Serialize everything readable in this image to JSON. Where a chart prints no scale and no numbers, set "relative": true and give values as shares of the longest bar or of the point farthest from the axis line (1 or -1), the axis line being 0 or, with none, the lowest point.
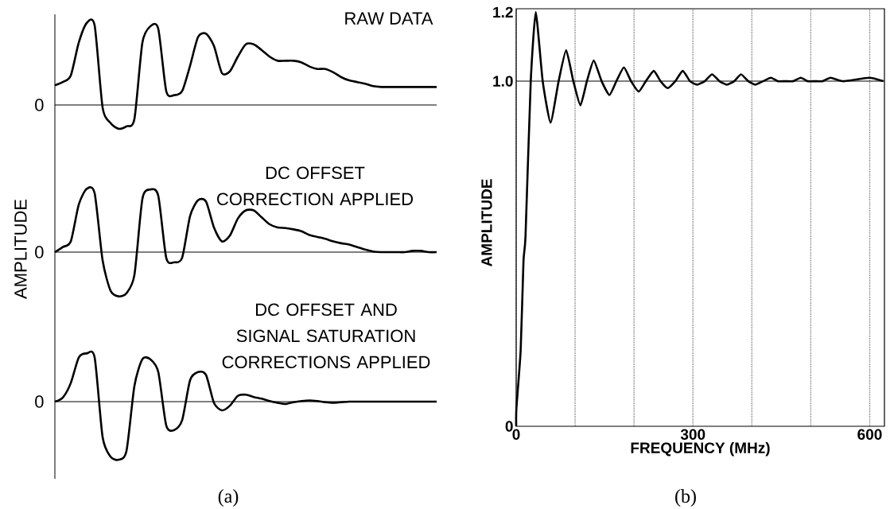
{
  "chart_data": [
    {
      "type": "line",
      "relative": true,
      "title": "RAW DATA",
      "annotations": [
        "0"
      ],
      "color": "#000000",
      "categories": [
        null,
        null,
        null,
        null,
        null,
        null,
        null,
        null,
        null,
        null,
        null,
        null,
        null,
        null,
        null,
        null,
        null,
        null,
        null,
        null,
        null,
        null,
        null,
        null,
        null,
        null,
        null,
        null,
        null,
        null,
        null,
        null,
        null,
        null,
        null,
        null,
        null,
        null,
        null,
        null,
        null,
        null,
        null,
        null,
        null,
        null,
        null,
        null,
        null
      ],
      "values": [
        0.24,
        0.28,
        0.36,
        0.76,
        1.0,
        0.97,
        -0.03,
        -0.22,
        -0.29,
        -0.26,
        -0.17,
        0.76,
        0.96,
        0.93,
        0.17,
        0.12,
        0.17,
        0.48,
        0.83,
        0.87,
        0.72,
        0.39,
        0.41,
        0.59,
        0.74,
        0.74,
        0.67,
        0.59,
        0.54,
        0.54,
        0.54,
        0.52,
        0.47,
        0.44,
        0.44,
        0.4,
        0.34,
        0.3,
        0.28,
        0.26,
        0.23,
        0.22,
        0.22,
        0.22,
        0.22,
        0.22,
        0.22,
        0.22,
        0.22
      ]
    },
    {
      "type": "line",
      "relative": true,
      "title": "DC OFFSET CORRECTION APPLIED",
      "ylabel": "AMPLITUDE",
      "annotations": [
        "0"
      ],
      "color": "#000000",
      "categories": [
        null,
        null,
        null,
        null,
        null,
        null,
        null,
        null,
        null,
        null,
        null,
        null,
        null,
        null,
        null,
        null,
        null,
        null,
        null,
        null,
        null,
        null,
        null,
        null,
        null,
        null,
        null,
        null,
        null,
        null,
        null,
        null,
        null,
        null,
        null,
        null,
        null,
        null,
        null,
        null,
        null,
        null,
        null,
        null,
        null,
        null,
        null,
        null,
        null
      ],
      "values": [
        0,
        0.08,
        0.17,
        0.75,
        1.0,
        0.93,
        -0.13,
        -0.61,
        -0.7,
        -0.65,
        -0.36,
        0.84,
        0.99,
        0.89,
        -0.09,
        -0.16,
        -0.09,
        0.57,
        0.82,
        0.8,
        0.39,
        0.17,
        0.26,
        0.53,
        0.66,
        0.66,
        0.55,
        0.44,
        0.39,
        0.38,
        0.36,
        0.33,
        0.27,
        0.24,
        0.21,
        0.17,
        0.14,
        0.12,
        0.08,
        0.04,
        0.01,
        0,
        0,
        0,
        0,
        0.02,
        0.02,
        0,
        0
      ]
    },
    {
      "type": "line",
      "relative": true,
      "title": "DC OFFSET AND SIGNAL SATURATION CORRECTIONS APPLIED",
      "annotations": [
        "0",
        "(a)"
      ],
      "color": "#000000",
      "categories": [
        null,
        null,
        null,
        null,
        null,
        null,
        null,
        null,
        null,
        null,
        null,
        null,
        null,
        null,
        null,
        null,
        null,
        null,
        null,
        null,
        null,
        null,
        null,
        null,
        null,
        null,
        null,
        null,
        null,
        null,
        null,
        null,
        null,
        null,
        null,
        null,
        null,
        null,
        null,
        null,
        null,
        null,
        null,
        null,
        null,
        null,
        null,
        null,
        null
      ],
      "values": [
        0,
        0.07,
        0.32,
        0.76,
        0.83,
        0.76,
        -0.61,
        -0.95,
        -1.0,
        -0.85,
        0.27,
        0.73,
        0.73,
        0.51,
        -0.41,
        -0.49,
        -0.32,
        0.37,
        0.51,
        0.46,
        -0.02,
        -0.15,
        -0.07,
        0.1,
        0.12,
        0.08,
        0.05,
        0.01,
        -0.02,
        -0.04,
        -0.01,
        0.01,
        0.02,
        0.01,
        -0.01,
        -0.02,
        -0.01,
        0,
        0,
        0,
        0,
        0,
        0,
        0,
        0,
        0,
        0,
        0,
        0
      ]
    },
    {
      "type": "line",
      "xlabel": "FREQUENCY (MHz)",
      "ylabel": "AMPLITUDE",
      "annotations": [
        "(b)"
      ],
      "color": "#000000",
      "grid": "x",
      "xlim": [
        0,
        625
      ],
      "ylim": [
        0,
        1.21
      ],
      "xticks": [
        0,
        {
          "value": 100,
          "label": null
        },
        {
          "value": 200,
          "label": null
        },
        300,
        {
          "value": 400,
          "label": null
        },
        {
          "value": 500,
          "label": null
        },
        600
      ],
      "yticks": [
        0,
        {
          "value": 1,
          "label": "1.0"
        },
        {
          "value": 1.2,
          "label": "1.2"
        }
      ],
      "ref_lines": [
        {
          "axis": "y",
          "value": 1
        }
      ],
      "x": [
        0,
        0.3,
        7.6,
        12.4,
        15.8,
        24.7,
        33.2,
        45,
        58.3,
        72,
        84.8,
        97,
        109,
        120,
        131.6,
        145,
        158.2,
        170,
        182.8,
        195,
        208,
        220,
        233.5,
        245,
        257.2,
        270,
        282.7,
        295,
        306.9,
        320,
        332.4,
        345,
        357.6,
        370,
        381.6,
        394,
        405.8,
        419,
        432.3,
        444,
        456.5,
        470,
        483,
        495,
        507.2,
        520,
        533.7,
        555.4,
        599,
        623
      ],
      "values": [
        0,
        0.05,
        0.22,
        0.48,
        0.55,
        1.0,
        1.2,
        1.0,
        0.88,
        1.0,
        1.09,
        1.0,
        0.93,
        1.0,
        1.06,
        1.0,
        0.96,
        1.0,
        1.04,
        1.0,
        0.97,
        1.0,
        1.03,
        1.0,
        0.98,
        1.0,
        1.03,
        1.0,
        0.99,
        1.0,
        1.02,
        1.0,
        0.99,
        1.0,
        1.02,
        1.0,
        0.99,
        1.0,
        1.01,
        1.0,
        1.0,
        1.0,
        1.01,
        1.0,
        1.0,
        1.0,
        1.01,
        1.0,
        1.01,
        1.0
      ]
    }
  ]
}
